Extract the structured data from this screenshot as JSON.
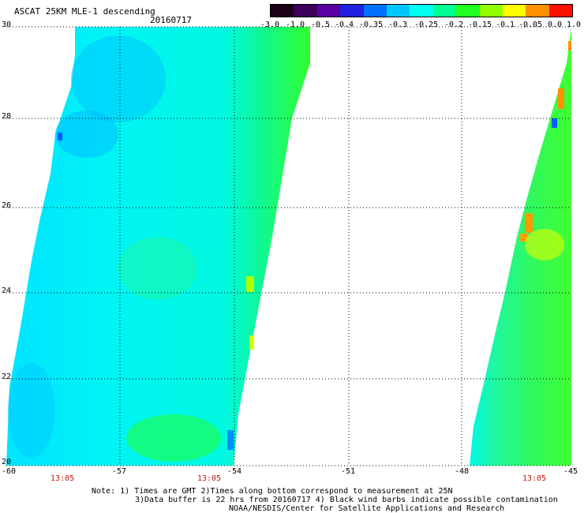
{
  "header": {
    "title": "ASCAT 25KM MLE-1 descending",
    "date": "20160717"
  },
  "colorbar": {
    "labels": [
      "-3.0",
      "-1.0",
      "-0.5",
      "-0.4",
      "-0.35",
      "-0.3",
      "-0.25",
      "-0.2",
      "-0.15",
      "-0.1",
      "-0.05",
      "0.0",
      "1.0"
    ],
    "colors": [
      "#1a0018",
      "#3a005a",
      "#5a00a0",
      "#2020e0",
      "#0070ff",
      "#00c8ff",
      "#00ffee",
      "#00ff90",
      "#20ff20",
      "#90ff00",
      "#ffff00",
      "#ff9000",
      "#ff1000"
    ]
  },
  "axes": {
    "lat_labels": [
      "30",
      "28",
      "26",
      "24",
      "22",
      "20"
    ],
    "lon_labels": [
      "-60",
      "-57",
      "-54",
      "-51",
      "-48",
      "-45"
    ]
  },
  "pass_times": [
    "13:05",
    "13:05",
    "13:05"
  ],
  "notes": [
    "Note: 1) Times are GMT 2)Times along bottom correspond to measurement at 25N",
    "3)Data buffer is 22 hrs from 20160717 4) Black wind barbs indicate possible contamination",
    "NOAA/NESDIS/Center for Satellite Applications and Research"
  ]
}
